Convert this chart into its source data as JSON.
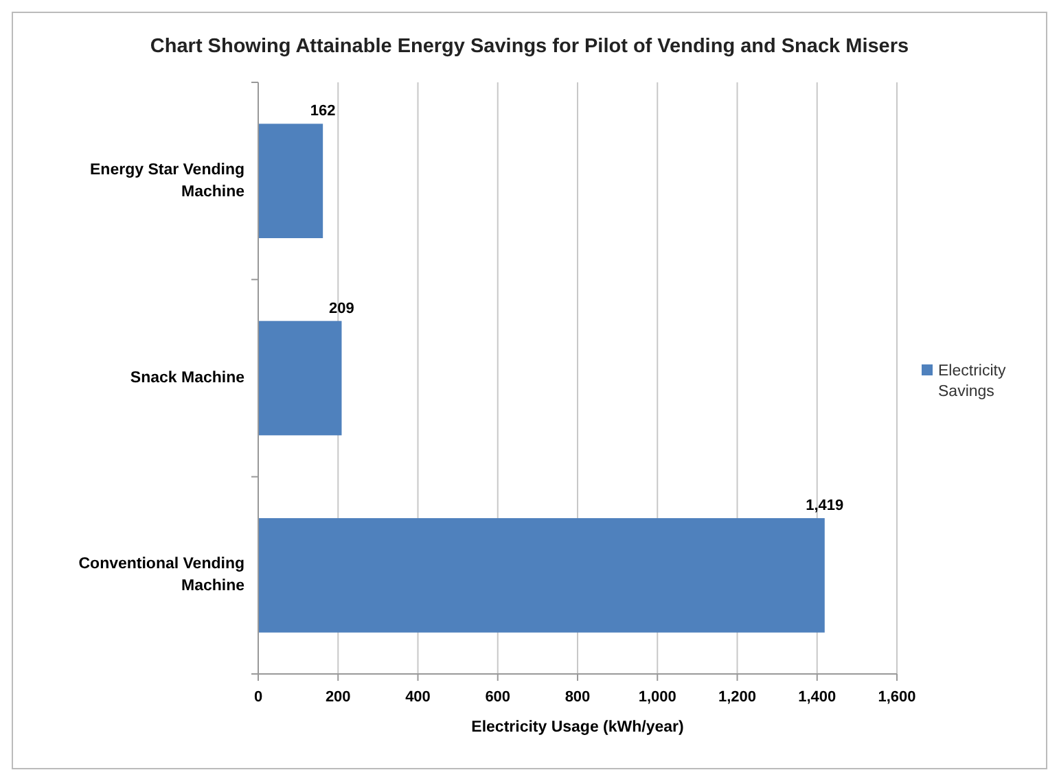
{
  "chart_data": {
    "type": "bar",
    "orientation": "horizontal",
    "title": "Chart Showing Attainable Energy Savings for Pilot of Vending and Snack Misers",
    "xlabel": "Electricity Usage  (kWh/year)",
    "categories": [
      "Energy Star Vending Machine",
      "Snack Machine",
      "Conventional Vending Machine"
    ],
    "series": [
      {
        "name": "Electricity Savings",
        "color": "#4f81bd",
        "values": [
          162,
          209,
          1419
        ],
        "value_labels": [
          "162",
          "209",
          "1,419"
        ]
      }
    ],
    "xlim": [
      0,
      1600
    ],
    "xticks": [
      0,
      200,
      400,
      600,
      800,
      {
        "value": 1000,
        "label": "1,000"
      },
      {
        "value": 1200,
        "label": "1,200"
      },
      {
        "value": 1400,
        "label": "1,400"
      },
      {
        "value": 1600,
        "label": "1,600"
      }
    ],
    "grid": "x",
    "legend": "right"
  }
}
